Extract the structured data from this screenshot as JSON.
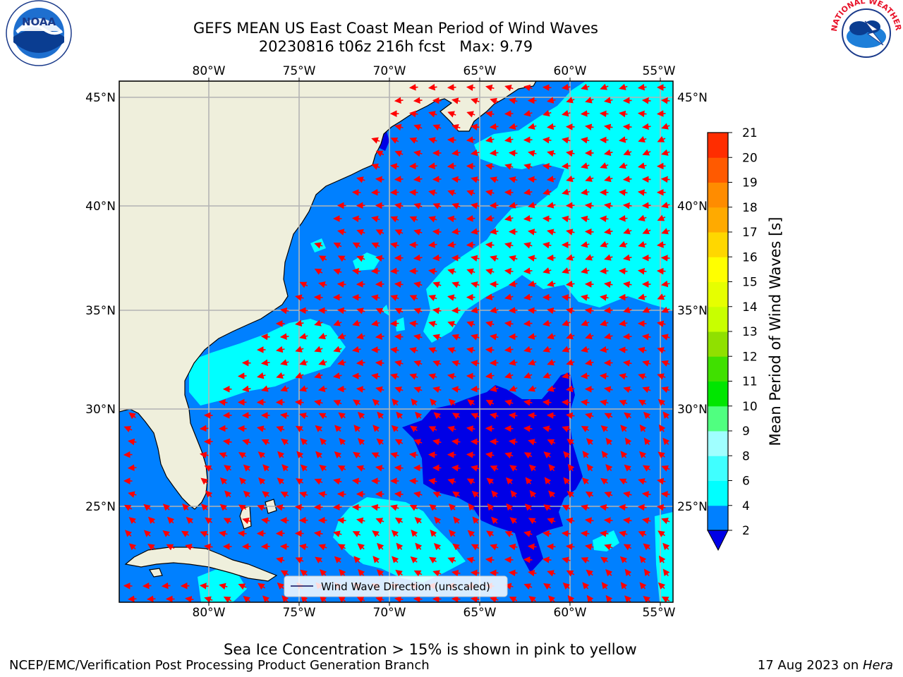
{
  "header": {
    "title_line1": "GEFS MEAN US East Coast Mean Period of Wind Waves",
    "title_line2": "20230816 t06z 216h fcst   Max: 9.79"
  },
  "logos": {
    "noaa_text": "NOAA",
    "nws_text": "NATIONAL WEATHER SERVICE"
  },
  "map": {
    "lon_labels": [
      "80°W",
      "75°W",
      "70°W",
      "65°W",
      "60°W",
      "55°W"
    ],
    "lat_labels": [
      "45°N",
      "40°N",
      "35°N",
      "30°N",
      "25°N"
    ],
    "legend_label": "Wind Wave Direction (unscaled)",
    "colors": {
      "land": "#efefdc",
      "coast": "#000000",
      "grid": "#b4b4b4",
      "arrow": "#ff0000",
      "band_2_4": "#0080ff",
      "band_4_6": "#00ffff",
      "below_2": "#0000e6"
    }
  },
  "colorbar": {
    "label": "Mean Period of Wind Waves [s]",
    "ticks": [
      "2",
      "4",
      "6",
      "8",
      "9",
      "10",
      "11",
      "12",
      "13",
      "14",
      "15",
      "16",
      "17",
      "18",
      "19",
      "20",
      "21"
    ],
    "colors": [
      "#0080ff",
      "#00ffff",
      "#40ffff",
      "#a0ffff",
      "#50ff80",
      "#00e600",
      "#40e000",
      "#90e000",
      "#c8ff00",
      "#e6ff00",
      "#ffff00",
      "#ffd700",
      "#ffaa00",
      "#ff8c00",
      "#ff5a00",
      "#ff2d00",
      "#ff0000"
    ],
    "under_color": "#0000e6"
  },
  "footer": {
    "ice_note": "Sea Ice Concentration > 15% is shown in pink to yellow",
    "credit": "NCEP/EMC/Verification Post Processing Product Generation Branch",
    "date": "17 Aug 2023 on ",
    "host": "Hera"
  }
}
